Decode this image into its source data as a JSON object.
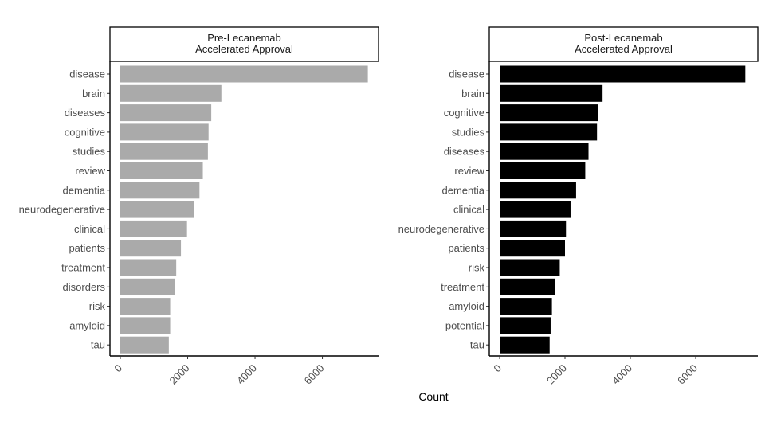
{
  "chart_data": {
    "type": "bar",
    "orientation": "horizontal",
    "xlabel": "Count",
    "xlim": [
      0,
      7600
    ],
    "x_ticks": [
      0,
      2000,
      4000,
      6000
    ],
    "x_tick_labels": [
      "0",
      "2000",
      "4000",
      "6000"
    ],
    "grid": false,
    "legend": "none",
    "panels": [
      {
        "strip_title": [
          "Pre-Lecanemab",
          "Accelerated Approval"
        ],
        "color": "#aaaaaa",
        "categories": [
          "disease",
          "brain",
          "diseases",
          "cognitive",
          "studies",
          "review",
          "dementia",
          "neurodegenerative",
          "clinical",
          "patients",
          "treatment",
          "disorders",
          "risk",
          "amyloid",
          "tau"
        ],
        "values": [
          7350,
          3000,
          2700,
          2620,
          2600,
          2450,
          2350,
          2180,
          1980,
          1800,
          1660,
          1620,
          1480,
          1480,
          1440
        ]
      },
      {
        "strip_title": [
          "Post-Lecanemab",
          "Accelerated Approval"
        ],
        "color": "#000000",
        "categories": [
          "disease",
          "brain",
          "cognitive",
          "studies",
          "diseases",
          "review",
          "dementia",
          "clinical",
          "neurodegenerative",
          "patients",
          "risk",
          "treatment",
          "amyloid",
          "potential",
          "tau"
        ],
        "values": [
          7520,
          3150,
          3020,
          2980,
          2720,
          2620,
          2340,
          2170,
          2030,
          2000,
          1840,
          1690,
          1600,
          1560,
          1530
        ]
      }
    ]
  }
}
